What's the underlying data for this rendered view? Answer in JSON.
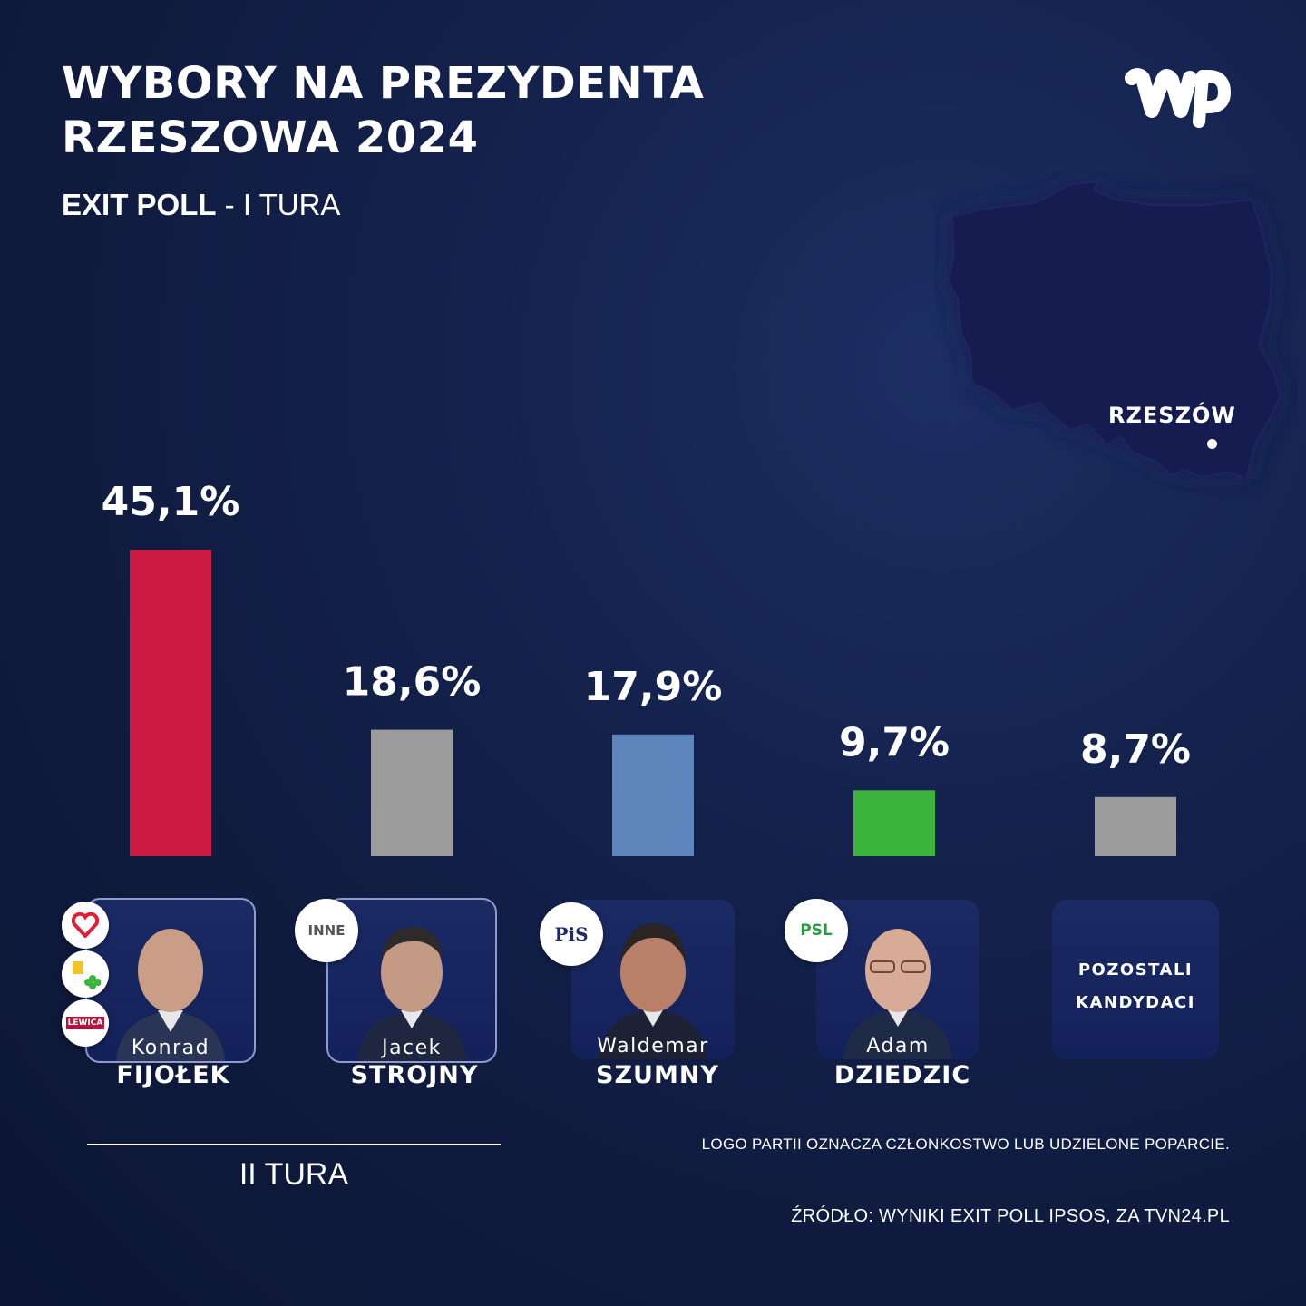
{
  "header": {
    "title_line1": "WYBORY NA PREZYDENTA",
    "title_line2": "RZESZOWA  2024",
    "subtitle_bold": "EXIT POLL",
    "subtitle_rest": " - I TURA"
  },
  "map": {
    "city": "RZESZÓW"
  },
  "colors": {
    "background": "#0f1a3d",
    "fijolek": "#cc1a42",
    "strojny": "#9b9b9b",
    "szumny": "#5d86bd",
    "dziedzic": "#3cb43c",
    "others": "#9b9b9b"
  },
  "chart_data": {
    "type": "bar",
    "categories": [
      "Konrad FIJOŁEK",
      "Jacek STROJNY",
      "Waldemar SZUMNY",
      "Adam DZIEDZIC",
      "POZOSTALI KANDYDACI"
    ],
    "values": [
      45.1,
      18.6,
      17.9,
      9.7,
      8.7
    ],
    "value_labels": [
      "45,1%",
      "18,6%",
      "17,9%",
      "9,7%",
      "8,7%"
    ],
    "colors": [
      "#cc1a42",
      "#9b9b9b",
      "#5d86bd",
      "#3cb43c",
      "#9b9b9b"
    ],
    "ylim": [
      0,
      45.1
    ],
    "grid": false,
    "legend": "none"
  },
  "candidates": [
    {
      "first": "Konrad",
      "last": "FIJOŁEK",
      "badges": [
        "heart-icon",
        "clover-icon",
        "LEWICA"
      ]
    },
    {
      "first": "Jacek",
      "last": "STROJNY",
      "badges": [
        "INNE"
      ]
    },
    {
      "first": "Waldemar",
      "last": "SZUMNY",
      "badges": [
        "PiS"
      ]
    },
    {
      "first": "Adam",
      "last": "DZIEDZIC",
      "badges": [
        "PSL"
      ]
    }
  ],
  "others": {
    "line1": "POZOSTALI",
    "line2": "KANDYDACI"
  },
  "footer": {
    "second_round": "II TURA",
    "note": "LOGO PARTII OZNACZA CZŁONKOSTWO LUB UDZIELONE POPARCIE.",
    "source": "ŹRÓDŁO: WYNIKI EXIT POLL IPSOS, ZA TVN24.PL"
  }
}
